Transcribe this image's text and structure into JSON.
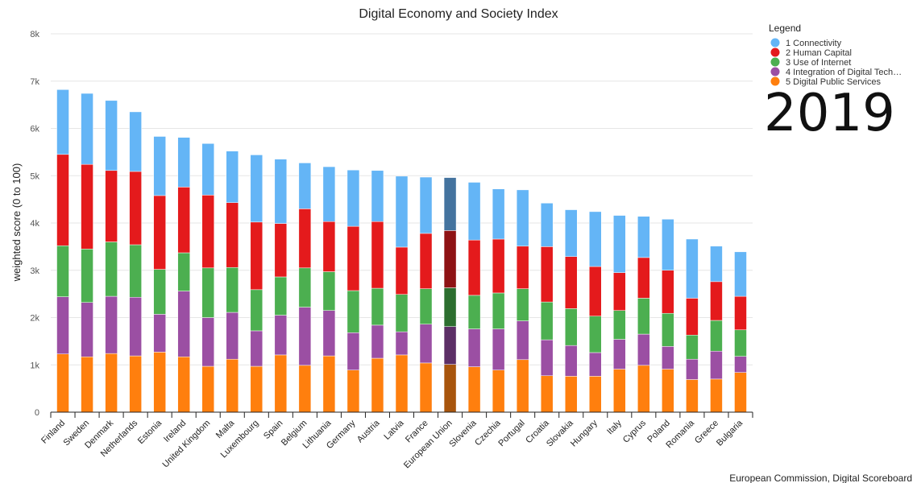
{
  "chart_data": {
    "type": "bar",
    "stacked": true,
    "title": "Digital Economy and Society Index",
    "ylabel": "weighted score (0 to 100)",
    "ylim": [
      0,
      8000
    ],
    "yticks": [
      0,
      1000,
      2000,
      3000,
      4000,
      5000,
      6000,
      7000,
      8000
    ],
    "ytick_labels": [
      "0",
      "1k",
      "2k",
      "3k",
      "4k",
      "5k",
      "6k",
      "7k",
      "8k"
    ],
    "grid": true,
    "legend_title": "Legend",
    "legend_position": "top-right",
    "year_label": "2019",
    "source": "European Commission, Digital Scoreboard",
    "highlight_category": "European Union",
    "categories": [
      "Finland",
      "Sweden",
      "Denmark",
      "Netherlands",
      "Estonia",
      "Ireland",
      "United Kingdom",
      "Malta",
      "Luxembourg",
      "Spain",
      "Belgium",
      "Lithuania",
      "Germany",
      "Austria",
      "Latvia",
      "France",
      "European Union",
      "Slovenia",
      "Czechia",
      "Portugal",
      "Croatia",
      "Slovakia",
      "Hungary",
      "Italy",
      "Cyprus",
      "Poland",
      "Romania",
      "Greece",
      "Bulgaria"
    ],
    "series": [
      {
        "name": "5 Digital Public Services",
        "color": "#ff7f0e",
        "highlight_color": "#a8550c",
        "values": [
          1230,
          1170,
          1240,
          1190,
          1270,
          1170,
          970,
          1120,
          970,
          1210,
          990,
          1190,
          890,
          1140,
          1210,
          1040,
          1010,
          960,
          890,
          1110,
          770,
          760,
          760,
          910,
          990,
          910,
          690,
          700,
          840
        ]
      },
      {
        "name": "4 Integration of Digital Tech…",
        "color": "#9b4fa3",
        "highlight_color": "#5c2f66",
        "values": [
          1210,
          1150,
          1210,
          1240,
          800,
          1390,
          1030,
          990,
          750,
          840,
          1230,
          960,
          790,
          700,
          490,
          820,
          800,
          800,
          870,
          820,
          760,
          650,
          500,
          630,
          660,
          480,
          430,
          590,
          340
        ]
      },
      {
        "name": "3 Use of Internet",
        "color": "#4caf50",
        "highlight_color": "#2c6e2f",
        "values": [
          1080,
          1130,
          1150,
          1110,
          950,
          810,
          1050,
          950,
          870,
          810,
          830,
          820,
          890,
          780,
          790,
          750,
          820,
          710,
          760,
          680,
          800,
          780,
          770,
          610,
          760,
          700,
          510,
          650,
          560
        ]
      },
      {
        "name": "2 Human Capital",
        "color": "#e41a1c",
        "highlight_color": "#8e1214",
        "values": [
          1930,
          1790,
          1510,
          1550,
          1560,
          1390,
          1540,
          1370,
          1430,
          1130,
          1250,
          1060,
          1360,
          1410,
          1000,
          1170,
          1210,
          1170,
          1140,
          900,
          1170,
          1100,
          1050,
          800,
          860,
          910,
          780,
          820,
          710
        ]
      },
      {
        "name": "1 Connectivity",
        "color": "#64b5f6",
        "highlight_color": "#44739e",
        "values": [
          1370,
          1500,
          1480,
          1260,
          1250,
          1050,
          1090,
          1090,
          1420,
          1360,
          970,
          1160,
          1190,
          1080,
          1500,
          1190,
          1120,
          1220,
          1060,
          1190,
          920,
          990,
          1160,
          1210,
          870,
          1080,
          1250,
          750,
          940
        ]
      }
    ]
  }
}
